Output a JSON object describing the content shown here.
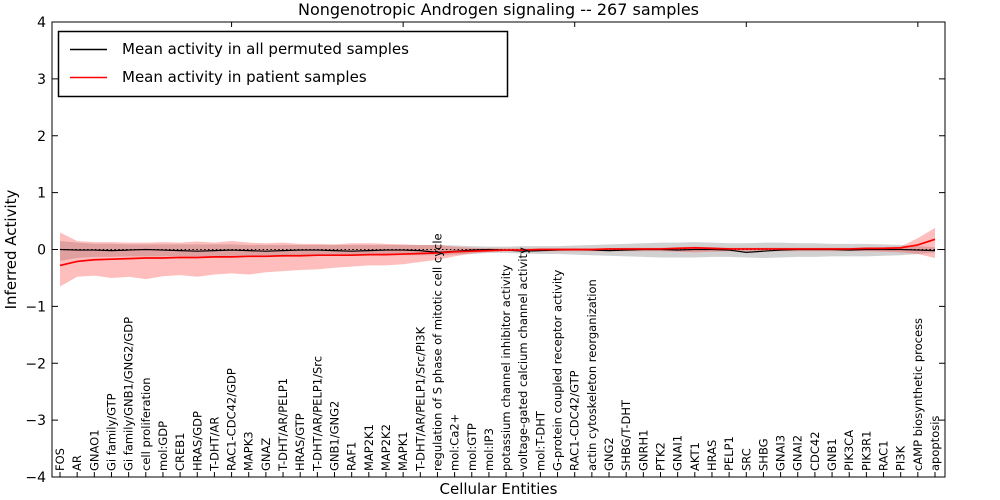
{
  "figure": {
    "title": "Nongenotropic Androgen signaling -- 267 samples",
    "xlabel": "Cellular Entities",
    "ylabel": "Inferred Activity"
  },
  "legend": {
    "items": [
      {
        "label": "Mean activity in all permuted samples",
        "color": "#000000"
      },
      {
        "label": "Mean activity in patient samples",
        "color": "#ff0000"
      }
    ]
  },
  "chart_data": {
    "type": "line",
    "title": "Nongenotropic Androgen signaling -- 267 samples",
    "xlabel": "Cellular Entities",
    "ylabel": "Inferred Activity",
    "ylim": [
      -4,
      4
    ],
    "yticklabels": [
      "4",
      "3",
      "2",
      "1",
      "0",
      "−1",
      "−2",
      "−3",
      "−4"
    ],
    "ytickvalues": [
      4,
      3,
      2,
      1,
      0,
      -1,
      -2,
      -3,
      -4
    ],
    "grid": false,
    "legend_position": "upper left",
    "zero_line": "dotted",
    "categories": [
      "FOS",
      "AR",
      "GNAO1",
      "Gi family/GTP",
      "Gi family/GNB1/GNG2/GDP",
      "cell proliferation",
      "mol:GDP",
      "CREB1",
      "HRAS/GDP",
      "T-DHT/AR",
      "RAC1-CDC42/GDP",
      "MAPK3",
      "GNAZ",
      "T-DHT/AR/PELP1",
      "HRAS/GTP",
      "T-DHT/AR/PELP1/Src",
      "GNB1/GNG2",
      "RAF1",
      "MAP2K1",
      "MAP2K2",
      "MAPK1",
      "T-DHT/AR/PELP1/Src/PI3K",
      "regulation of S phase of mitotic cell cycle",
      "mol:Ca2+",
      "mol:GTP",
      "mol:IP3",
      "potassium channel inhibitor activity",
      "voltage-gated calcium channel activity",
      "mol:T-DHT",
      "G-protein coupled receptor activity",
      "RAC1-CDC42/GTP",
      "actin cytoskeleton reorganization",
      "GNG2",
      "SHBG/T-DHT",
      "GNRH1",
      "PTK2",
      "GNAI1",
      "AKT1",
      "HRAS",
      "PELP1",
      "SRC",
      "SHBG",
      "GNAI3",
      "GNAI2",
      "CDC42",
      "GNB1",
      "PIK3CA",
      "PIK3R1",
      "RAC1",
      "PI3K",
      "cAMP biosynthetic process",
      "apoptosis"
    ],
    "series": [
      {
        "name": "Mean activity in all permuted samples",
        "color": "#000000",
        "style": "solid",
        "values": [
          0.0,
          -0.01,
          -0.01,
          -0.02,
          -0.01,
          0.0,
          -0.01,
          -0.02,
          -0.03,
          -0.02,
          -0.01,
          -0.02,
          -0.03,
          -0.02,
          -0.01,
          -0.01,
          -0.02,
          -0.03,
          -0.02,
          -0.01,
          -0.01,
          -0.02,
          -0.05,
          -0.03,
          -0.01,
          0.0,
          -0.01,
          -0.03,
          -0.02,
          -0.01,
          0.0,
          -0.01,
          -0.02,
          -0.01,
          0.0,
          0.0,
          -0.01,
          0.0,
          0.0,
          -0.01,
          -0.05,
          -0.03,
          -0.01,
          0.0,
          0.0,
          0.0,
          -0.01,
          0.0,
          0.0,
          0.0,
          -0.01,
          -0.02
        ]
      },
      {
        "name": "Mean activity in patient samples",
        "color": "#ff0000",
        "style": "solid",
        "values": [
          -0.28,
          -0.21,
          -0.18,
          -0.17,
          -0.16,
          -0.15,
          -0.15,
          -0.14,
          -0.14,
          -0.13,
          -0.13,
          -0.12,
          -0.12,
          -0.11,
          -0.11,
          -0.1,
          -0.1,
          -0.1,
          -0.09,
          -0.09,
          -0.08,
          -0.07,
          -0.06,
          -0.04,
          -0.03,
          -0.02,
          -0.01,
          -0.01,
          0.0,
          0.0,
          0.0,
          0.0,
          0.01,
          0.01,
          0.01,
          0.01,
          0.02,
          0.03,
          0.02,
          0.01,
          0.01,
          0.01,
          0.01,
          0.01,
          0.01,
          0.01,
          0.01,
          0.02,
          0.02,
          0.03,
          0.08,
          0.18
        ]
      }
    ],
    "bands": [
      {
        "name": "permuted samples range",
        "color": "#999999",
        "opacity": 0.45,
        "upper": [
          0.15,
          0.12,
          0.1,
          0.1,
          0.09,
          0.09,
          0.09,
          0.09,
          0.09,
          0.09,
          0.09,
          0.08,
          0.08,
          0.08,
          0.08,
          0.08,
          0.08,
          0.08,
          0.08,
          0.08,
          0.08,
          0.08,
          0.08,
          0.07,
          0.06,
          0.05,
          0.05,
          0.06,
          0.06,
          0.06,
          0.07,
          0.08,
          0.09,
          0.1,
          0.11,
          0.12,
          0.12,
          0.13,
          0.12,
          0.11,
          0.11,
          0.12,
          0.12,
          0.11,
          0.11,
          0.1,
          0.1,
          0.1,
          0.09,
          0.08,
          0.06,
          0.04
        ],
        "lower": [
          -0.2,
          -0.15,
          -0.13,
          -0.13,
          -0.12,
          -0.12,
          -0.12,
          -0.12,
          -0.12,
          -0.12,
          -0.11,
          -0.11,
          -0.11,
          -0.11,
          -0.1,
          -0.1,
          -0.1,
          -0.1,
          -0.1,
          -0.1,
          -0.1,
          -0.1,
          -0.1,
          -0.09,
          -0.08,
          -0.06,
          -0.06,
          -0.07,
          -0.08,
          -0.08,
          -0.09,
          -0.1,
          -0.11,
          -0.12,
          -0.13,
          -0.14,
          -0.14,
          -0.14,
          -0.13,
          -0.13,
          -0.14,
          -0.15,
          -0.14,
          -0.13,
          -0.13,
          -0.12,
          -0.12,
          -0.12,
          -0.11,
          -0.1,
          -0.08,
          -0.05
        ]
      },
      {
        "name": "patient samples range",
        "color": "#ff4444",
        "opacity": 0.35,
        "upper": [
          0.3,
          0.15,
          0.13,
          0.13,
          0.12,
          0.12,
          0.13,
          0.12,
          0.14,
          0.12,
          0.15,
          0.12,
          0.11,
          0.12,
          0.1,
          0.1,
          0.09,
          0.11,
          0.11,
          0.1,
          0.09,
          0.08,
          0.08,
          0.05,
          0.03,
          0.02,
          0.02,
          0.02,
          0.02,
          0.02,
          0.02,
          0.02,
          0.02,
          0.03,
          0.03,
          0.03,
          0.04,
          0.05,
          0.04,
          0.03,
          0.03,
          0.03,
          0.03,
          0.03,
          0.03,
          0.03,
          0.03,
          0.03,
          0.04,
          0.05,
          0.2,
          0.38
        ],
        "lower": [
          -0.65,
          -0.48,
          -0.46,
          -0.5,
          -0.48,
          -0.52,
          -0.47,
          -0.45,
          -0.48,
          -0.44,
          -0.42,
          -0.44,
          -0.4,
          -0.38,
          -0.36,
          -0.35,
          -0.32,
          -0.3,
          -0.28,
          -0.28,
          -0.26,
          -0.22,
          -0.18,
          -0.12,
          -0.07,
          -0.04,
          -0.03,
          -0.03,
          -0.03,
          -0.03,
          -0.03,
          -0.03,
          -0.03,
          -0.03,
          -0.03,
          -0.03,
          -0.04,
          -0.05,
          -0.04,
          -0.03,
          -0.03,
          -0.03,
          -0.03,
          -0.03,
          -0.03,
          -0.03,
          -0.03,
          -0.03,
          -0.04,
          -0.05,
          -0.08,
          -0.15
        ]
      }
    ]
  },
  "colors": {
    "patient_red": "#ff0000",
    "permuted_black": "#000000",
    "frame": "#000000",
    "background": "#ffffff"
  }
}
